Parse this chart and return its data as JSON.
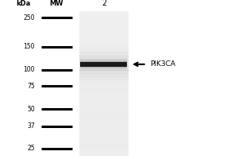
{
  "background_color": "#ffffff",
  "blot_color": "#e8e8e8",
  "band_color": "#1a1a1a",
  "band_kda": 110,
  "marker_levels": [
    250,
    150,
    100,
    75,
    50,
    37,
    25
  ],
  "kda_label": "kDa",
  "mw_label": "MW",
  "lane_label": "2",
  "marker_label": "PIK3CA",
  "ymin": 22,
  "ymax": 280,
  "fig_width": 3.0,
  "fig_height": 2.0
}
